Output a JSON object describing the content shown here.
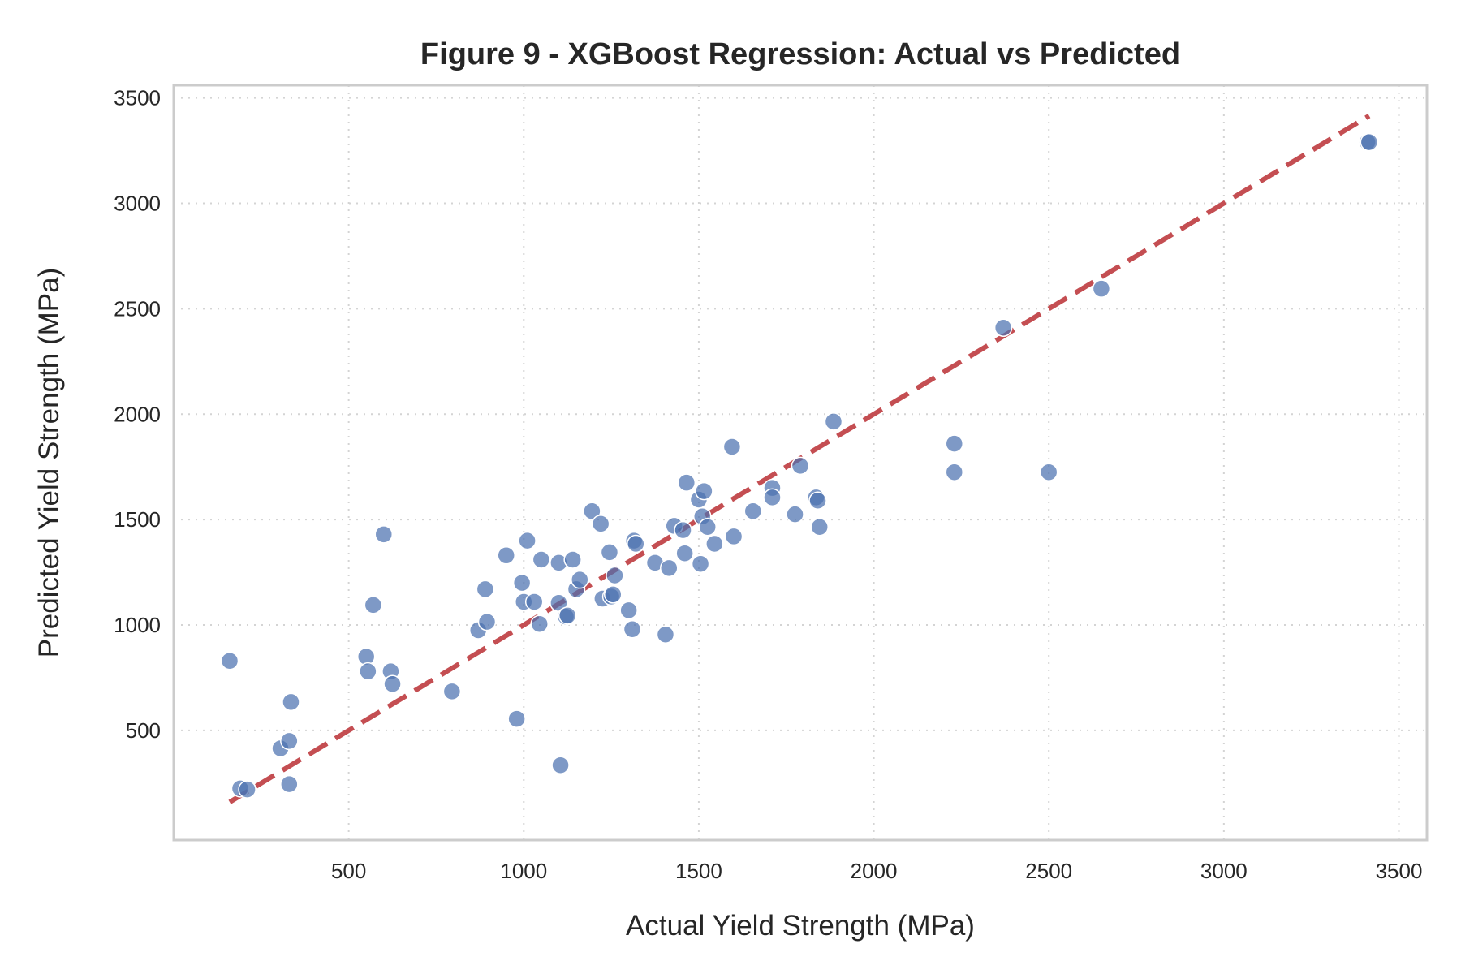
{
  "chart_data": {
    "type": "scatter",
    "title": "Figure 9 - XGBoost Regression: Actual vs Predicted",
    "xlabel": "Actual Yield Strength (MPa)",
    "ylabel": "Predicted Yield Strength (MPa)",
    "xlim": [
      0,
      3580
    ],
    "ylim": [
      -20,
      3560
    ],
    "xticks": [
      500,
      1000,
      1500,
      2000,
      2500,
      3000,
      3500
    ],
    "yticks": [
      500,
      1000,
      1500,
      2000,
      2500,
      3000,
      3500
    ],
    "grid": true,
    "legend": "none",
    "colors": {
      "points": "#4c72b0",
      "ideal_line": "#c44e52"
    },
    "ideal_line": {
      "x": [
        160,
        3415
      ],
      "y": [
        160,
        3415
      ]
    },
    "series": [
      {
        "x": [
          160,
          190,
          210,
          305,
          330,
          330,
          335,
          550,
          555,
          570,
          600,
          620,
          625,
          795,
          870,
          890,
          895,
          950,
          980,
          995,
          1000,
          1010,
          1030,
          1045,
          1050,
          1100,
          1100,
          1105,
          1120,
          1125,
          1140,
          1150,
          1160,
          1195,
          1220,
          1225,
          1245,
          1250,
          1255,
          1260,
          1300,
          1310,
          1315,
          1320,
          1375,
          1405,
          1415,
          1430,
          1455,
          1460,
          1465,
          1500,
          1505,
          1510,
          1515,
          1525,
          1545,
          1595,
          1600,
          1655,
          1710,
          1710,
          1775,
          1790,
          1835,
          1840,
          1845,
          1885,
          2230,
          2230,
          2370,
          2500,
          2650,
          3410,
          3415
        ],
        "y": [
          830,
          225,
          220,
          415,
          450,
          245,
          635,
          850,
          780,
          1095,
          1430,
          780,
          720,
          685,
          975,
          1170,
          1015,
          1330,
          555,
          1200,
          1110,
          1400,
          1110,
          1005,
          1310,
          1295,
          1105,
          335,
          1040,
          1045,
          1310,
          1170,
          1215,
          1540,
          1480,
          1125,
          1345,
          1135,
          1145,
          1235,
          1070,
          980,
          1400,
          1385,
          1295,
          955,
          1270,
          1470,
          1450,
          1340,
          1675,
          1595,
          1290,
          1515,
          1635,
          1465,
          1385,
          1845,
          1420,
          1540,
          1650,
          1605,
          1525,
          1755,
          1605,
          1590,
          1465,
          1965,
          1860,
          1725,
          2410,
          1725,
          2595,
          3290,
          3290
        ]
      }
    ]
  }
}
